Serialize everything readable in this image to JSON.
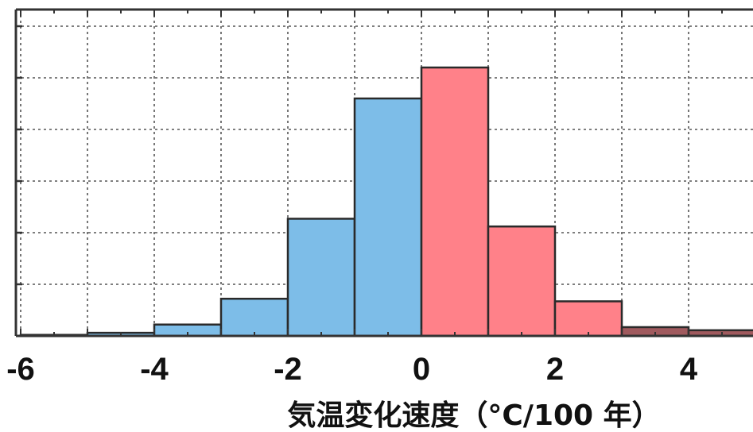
{
  "chart_data": {
    "type": "bar",
    "xlabel": "気温変化速度（°C/100 年）",
    "x_ticks": [
      -6,
      -4,
      -2,
      0,
      2,
      4
    ],
    "x_tick_labels": [
      "-6",
      "-4",
      "-2",
      "0",
      "2",
      "4"
    ],
    "xlim": [
      -6,
      5
    ],
    "ylim": [
      0,
      6
    ],
    "grid": true,
    "bins": [
      {
        "x0": -6,
        "x1": -5,
        "value": 0.02,
        "color": "#7dbde8"
      },
      {
        "x0": -5,
        "x1": -4,
        "value": 0.06,
        "color": "#7dbde8"
      },
      {
        "x0": -4,
        "x1": -3,
        "value": 0.22,
        "color": "#7dbde8"
      },
      {
        "x0": -3,
        "x1": -2,
        "value": 0.72,
        "color": "#7dbde8"
      },
      {
        "x0": -2,
        "x1": -1,
        "value": 2.27,
        "color": "#7dbde8"
      },
      {
        "x0": -1,
        "x1": 0,
        "value": 4.6,
        "color": "#7dbde8"
      },
      {
        "x0": 0,
        "x1": 1,
        "value": 5.2,
        "color": "#ff8189"
      },
      {
        "x0": 1,
        "x1": 2,
        "value": 2.12,
        "color": "#ff8189"
      },
      {
        "x0": 2,
        "x1": 3,
        "value": 0.67,
        "color": "#ff8189"
      },
      {
        "x0": 3,
        "x1": 4,
        "value": 0.17,
        "color": "#a05a5e"
      },
      {
        "x0": 4,
        "x1": 5,
        "value": 0.11,
        "color": "#a05a5e"
      }
    ]
  }
}
